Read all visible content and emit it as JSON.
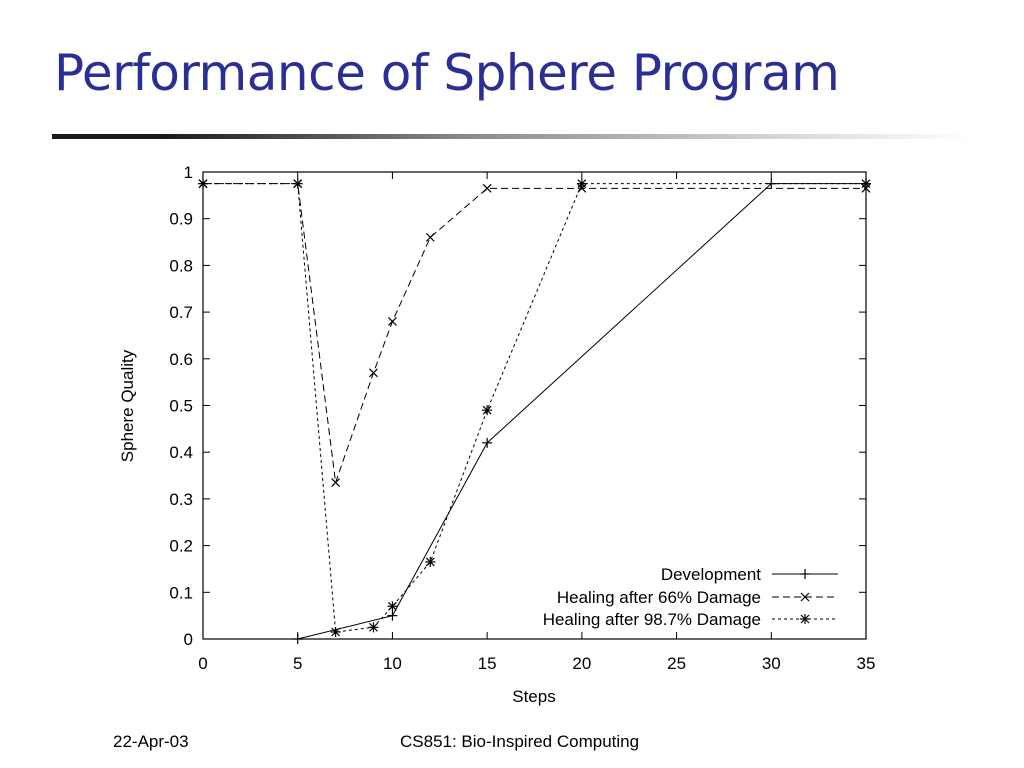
{
  "slide": {
    "title": "Performance of Sphere Program",
    "footer_date": "22-Apr-03",
    "footer_course": "CS851: Bio-Inspired Computing"
  },
  "colors": {
    "title": "#2b2f93",
    "ink": "#000000"
  },
  "chart_data": {
    "type": "line",
    "xlabel": "Steps",
    "ylabel": "Sphere Quality",
    "xlim": [
      0,
      35
    ],
    "ylim": [
      0,
      1
    ],
    "xticks": [
      0,
      5,
      10,
      15,
      20,
      25,
      30,
      35
    ],
    "yticks": [
      0,
      0.1,
      0.2,
      0.3,
      0.4,
      0.5,
      0.6,
      0.7,
      0.8,
      0.9,
      1
    ],
    "ytick_labels": [
      "0",
      "0.1",
      "0.2",
      "0.3",
      "0.4",
      "0.5",
      "0.6",
      "0.7",
      "0.8",
      "0.9",
      "1"
    ],
    "legend_position": "bottom-right",
    "grid": false,
    "series": [
      {
        "name": "Development",
        "marker": "plus",
        "dash": "solid",
        "points": [
          [
            5,
            0.0
          ],
          [
            10,
            0.05
          ],
          [
            15,
            0.42
          ],
          [
            30,
            0.975
          ],
          [
            35,
            0.975
          ]
        ]
      },
      {
        "name": "Healing after 66% Damage",
        "marker": "x",
        "dash": "dashed",
        "points": [
          [
            0,
            0.975
          ],
          [
            5,
            0.975
          ],
          [
            7,
            0.335
          ],
          [
            9,
            0.57
          ],
          [
            10,
            0.68
          ],
          [
            12,
            0.86
          ],
          [
            15,
            0.965
          ],
          [
            20,
            0.965
          ],
          [
            35,
            0.965
          ]
        ]
      },
      {
        "name": "Healing after 98.7% Damage",
        "marker": "asterisk",
        "dash": "dotted",
        "points": [
          [
            0,
            0.975
          ],
          [
            5,
            0.975
          ],
          [
            7,
            0.015
          ],
          [
            9,
            0.025
          ],
          [
            10,
            0.07
          ],
          [
            12,
            0.165
          ],
          [
            15,
            0.49
          ],
          [
            20,
            0.975
          ],
          [
            35,
            0.975
          ]
        ]
      }
    ]
  }
}
